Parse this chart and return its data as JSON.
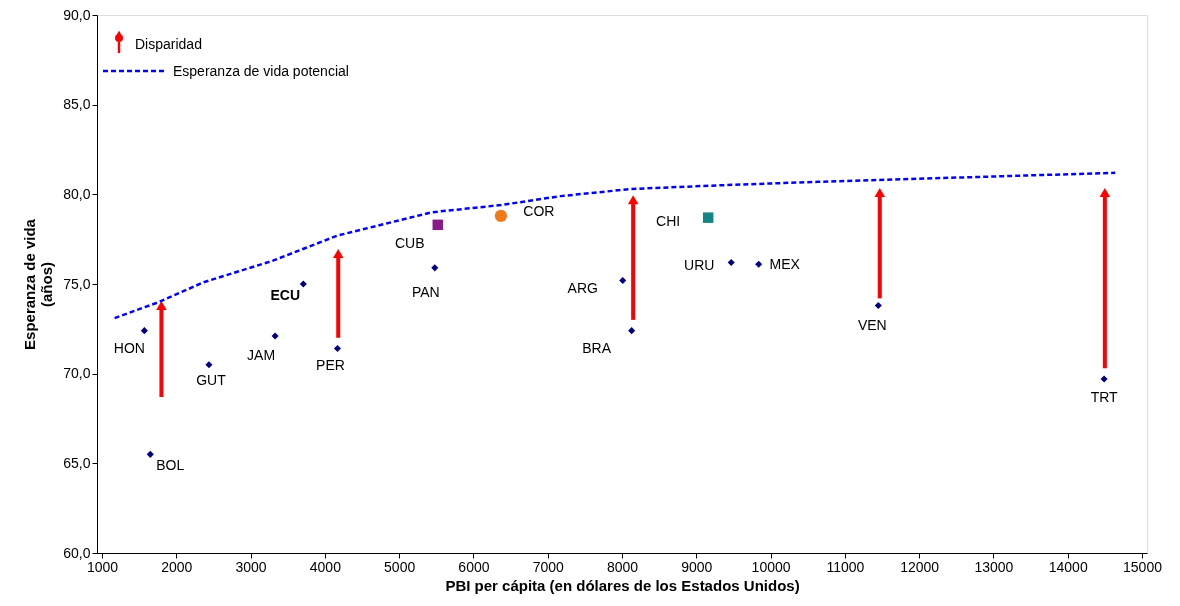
{
  "chart_data": {
    "type": "scatter",
    "xlabel": "PBI per cápita (en dólares de los Estados Unidos)",
    "ylabel": "Esperanza de vida\n(años)",
    "xlim": [
      1000,
      15000
    ],
    "xticks": [
      1000,
      2000,
      3000,
      4000,
      5000,
      6000,
      7000,
      8000,
      9000,
      10000,
      11000,
      12000,
      13000,
      14000,
      15000
    ],
    "ylim": [
      60,
      90
    ],
    "yticks": [
      {
        "value": 60,
        "label": "60,0"
      },
      {
        "value": 65,
        "label": "65,0"
      },
      {
        "value": 70,
        "label": "70,0"
      },
      {
        "value": 75,
        "label": "75,0"
      },
      {
        "value": 80,
        "label": "80,0"
      },
      {
        "value": 85,
        "label": "85,0"
      },
      {
        "value": 90,
        "label": "90,0"
      }
    ],
    "grid": false,
    "legend": "top left",
    "series": [
      {
        "name": "Esperanza de vida potencial",
        "type": "line",
        "line_style": "dashed",
        "marker": "none",
        "color": "#0000ff",
        "x": [
          1170,
          1770,
          2370,
          3300,
          4170,
          5440,
          6370,
          7170,
          8130,
          9300,
          10640,
          11450,
          13040,
          14640
        ],
        "values": [
          73.1,
          74.0,
          75.1,
          76.3,
          77.7,
          79.0,
          79.4,
          79.9,
          80.3,
          80.5,
          80.7,
          80.8,
          81.0,
          81.2
        ]
      },
      {
        "name": "Disparidad",
        "type": "bar",
        "color": "#ff0000",
        "x": [
          1800,
          4180,
          8150,
          11470,
          14500
        ],
        "base": [
          68.7,
          72.0,
          73.0,
          74.2,
          70.3
        ],
        "values": [
          5.1,
          4.7,
          6.7,
          5.9,
          9.8
        ]
      },
      {
        "type": "scatter",
        "marker": "diamond",
        "color": "#000080",
        "x": [
          1570,
          1650,
          2440,
          3330,
          3710,
          4170,
          5480,
          8010,
          8130,
          9470,
          9840,
          11450,
          14490
        ],
        "values": [
          72.4,
          65.5,
          70.5,
          72.1,
          75.0,
          71.4,
          75.9,
          75.2,
          72.4,
          76.2,
          76.1,
          73.8,
          69.7
        ]
      },
      {
        "type": "scatter",
        "marker": "square",
        "color": "#8b1a89",
        "x": [
          5520
        ],
        "values": [
          78.3
        ]
      },
      {
        "type": "scatter",
        "marker": "circle",
        "color": "#f07a1a",
        "x": [
          6370
        ],
        "values": [
          78.8
        ]
      },
      {
        "type": "scatter",
        "marker": "square",
        "color": "#138585",
        "x": [
          9160
        ],
        "values": [
          78.7
        ]
      }
    ],
    "annotations": [
      {
        "text": "HON",
        "x": 1570,
        "y": 72.4
      },
      {
        "text": "BOL",
        "x": 1650,
        "y": 65.5
      },
      {
        "text": "GUT",
        "x": 2440,
        "y": 70.5
      },
      {
        "text": "JAM",
        "x": 3330,
        "y": 72.1
      },
      {
        "text": "ECU",
        "x": 3710,
        "y": 75.0
      },
      {
        "text": "PER",
        "x": 4170,
        "y": 71.4
      },
      {
        "text": "PAN",
        "x": 5480,
        "y": 75.9
      },
      {
        "text": "CUB",
        "x": 5520,
        "y": 78.3
      },
      {
        "text": "COR",
        "x": 6370,
        "y": 78.8
      },
      {
        "text": "ARG",
        "x": 8010,
        "y": 75.2
      },
      {
        "text": "BRA",
        "x": 8130,
        "y": 72.4
      },
      {
        "text": "CHI",
        "x": 9160,
        "y": 78.7
      },
      {
        "text": "URU",
        "x": 9470,
        "y": 76.2
      },
      {
        "text": "MEX",
        "x": 9840,
        "y": 76.1
      },
      {
        "text": "VEN",
        "x": 11450,
        "y": 73.8
      },
      {
        "text": "TRT",
        "x": 14490,
        "y": 69.7
      }
    ]
  }
}
